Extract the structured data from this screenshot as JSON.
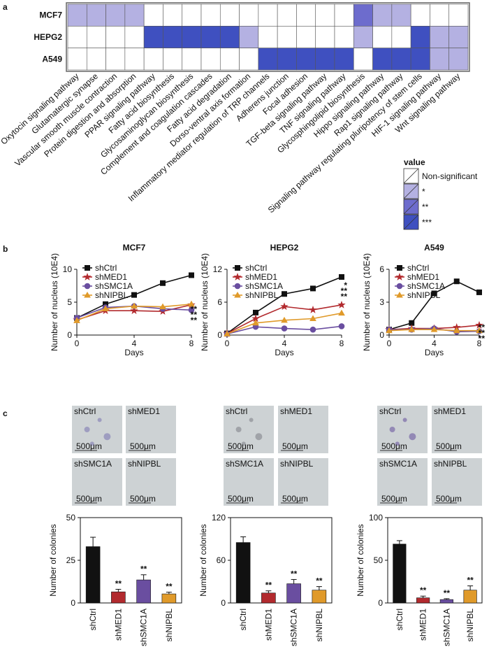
{
  "panel_labels": [
    "a",
    "b",
    "c"
  ],
  "chart_data": [
    {
      "type": "heatmap",
      "rows": [
        "MCF7",
        "HEPG2",
        "A549"
      ],
      "columns": [
        "Oxytocin signaling pathway",
        "Glutamatergic synapse",
        "Vascular smooth muscle contraction",
        "Protein digestion and absorption",
        "PPAR signaling pathway",
        "Fatty acid biosynthesis",
        "Glycosaminoglycan biosynthesis",
        "Complement and coagulation cascades",
        "Fatty acid degradation",
        "Dorso-ventral axis formation",
        "Inflammatory mediator regulation of TRP channels",
        "Adherens junction",
        "Focal adhesion",
        "TGF-beta signaling pathway",
        "TNF signaling pathway",
        "Glycosphingolipid biosynthesis",
        "Hippo signaling pathway",
        "Rap1 signaling pathway",
        "Signaling pathway regulating pluripotency of stem cells",
        "HIF-1 signaling pathway",
        "Wnt signaling pathway"
      ],
      "values": [
        [
          1,
          1,
          1,
          1,
          0,
          0,
          0,
          0,
          0,
          0,
          0,
          0,
          0,
          0,
          0,
          2,
          1,
          1,
          0,
          0,
          0
        ],
        [
          0,
          0,
          0,
          0,
          3,
          3,
          3,
          3,
          3,
          1,
          0,
          0,
          0,
          0,
          0,
          1,
          0,
          0,
          3,
          1,
          1
        ],
        [
          0,
          0,
          0,
          0,
          0,
          0,
          0,
          0,
          0,
          0,
          3,
          3,
          3,
          3,
          3,
          0,
          3,
          3,
          3,
          1,
          1
        ]
      ],
      "legend_title": "value",
      "legend": [
        {
          "label": "Non-significant",
          "color": "#ffffff"
        },
        {
          "label": "*",
          "color": "#b4b1e2"
        },
        {
          "label": "**",
          "color": "#6d6ccd"
        },
        {
          "label": "***",
          "color": "#3f50c0"
        }
      ]
    },
    {
      "type": "line",
      "title": "MCF7",
      "x_label": "Days",
      "y_label": "Number of nucleus (10E4)",
      "x": [
        0,
        2,
        4,
        6,
        8
      ],
      "xlim": [
        0,
        8
      ],
      "xticks": [
        0,
        4,
        8
      ],
      "ylim": [
        0,
        10
      ],
      "yticks": [
        0,
        5,
        10
      ],
      "series": [
        {
          "name": "shCtrl",
          "color": "#111111",
          "marker": "square",
          "values": [
            2.6,
            4.7,
            6.1,
            7.9,
            9.1
          ]
        },
        {
          "name": "shMED1",
          "color": "#b22a2e",
          "marker": "star",
          "values": [
            2.3,
            3.7,
            3.7,
            3.6,
            4.6
          ]
        },
        {
          "name": "shSMC1A",
          "color": "#6a4ea0",
          "marker": "circle",
          "values": [
            2.6,
            4.2,
            4.4,
            4.0,
            3.8
          ]
        },
        {
          "name": "shNIPBL",
          "color": "#e09a2a",
          "marker": "triangle",
          "values": [
            2.2,
            4.0,
            4.4,
            4.3,
            4.7
          ]
        }
      ],
      "annotations": [
        {
          "text": "**",
          "color": "#b22a2e"
        },
        {
          "text": "**",
          "color": "#6a4ea0"
        },
        {
          "text": "**",
          "color": "#e09a2a"
        }
      ]
    },
    {
      "type": "line",
      "title": "HEPG2",
      "x_label": "Days",
      "y_label": "Number of nucleus (10E4)",
      "x": [
        0,
        2,
        4,
        6,
        8
      ],
      "xlim": [
        0,
        8
      ],
      "xticks": [
        0,
        4,
        8
      ],
      "ylim": [
        0,
        12
      ],
      "yticks": [
        0,
        6,
        12
      ],
      "series": [
        {
          "name": "shCtrl",
          "color": "#111111",
          "marker": "square",
          "values": [
            0.3,
            4.1,
            7.5,
            8.5,
            10.6
          ]
        },
        {
          "name": "shMED1",
          "color": "#b22a2e",
          "marker": "star",
          "values": [
            0.3,
            3.0,
            5.2,
            4.6,
            5.5
          ]
        },
        {
          "name": "shSMC1A",
          "color": "#6a4ea0",
          "marker": "circle",
          "values": [
            0.2,
            1.5,
            1.2,
            1.0,
            1.6
          ]
        },
        {
          "name": "shNIPBL",
          "color": "#e09a2a",
          "marker": "triangle",
          "values": [
            0.2,
            2.2,
            2.7,
            3.0,
            4.0
          ]
        }
      ],
      "annotations": [
        {
          "text": "*",
          "color": "#b22a2e"
        },
        {
          "text": "**",
          "color": "#6a4ea0"
        },
        {
          "text": "**",
          "color": "#e09a2a"
        }
      ]
    },
    {
      "type": "line",
      "title": "A549",
      "x_label": "Days",
      "y_label": "Number of nucleus (10E4)",
      "x": [
        0,
        2,
        4,
        6,
        8
      ],
      "xlim": [
        0,
        8
      ],
      "xticks": [
        0,
        4,
        8
      ],
      "ylim": [
        0,
        6
      ],
      "yticks": [
        0,
        3,
        6
      ],
      "series": [
        {
          "name": "shCtrl",
          "color": "#111111",
          "marker": "square",
          "values": [
            0.5,
            1.1,
            3.8,
            4.9,
            3.9
          ]
        },
        {
          "name": "shMED1",
          "color": "#b22a2e",
          "marker": "star",
          "values": [
            0.5,
            0.6,
            0.6,
            0.7,
            0.9
          ]
        },
        {
          "name": "shSMC1A",
          "color": "#6a4ea0",
          "marker": "circle",
          "values": [
            0.5,
            0.5,
            0.6,
            0.3,
            0.35
          ]
        },
        {
          "name": "shNIPBL",
          "color": "#e09a2a",
          "marker": "triangle",
          "values": [
            0.4,
            0.5,
            0.5,
            0.4,
            0.4
          ]
        }
      ],
      "annotations": [
        {
          "text": "**",
          "color": "#b22a2e"
        },
        {
          "text": "**",
          "color": "#6a4ea0"
        },
        {
          "text": "**",
          "color": "#e09a2a"
        }
      ]
    },
    {
      "type": "bar",
      "y_label": "Number of colonies",
      "categories": [
        "shCtrl",
        "shMED1",
        "shSMC1A",
        "shNIPBL"
      ],
      "values": [
        33,
        6.5,
        13.5,
        5.3
      ],
      "errors": [
        5.5,
        1.5,
        3,
        1
      ],
      "colors": [
        "#111111",
        "#b22a2e",
        "#6a4ea0",
        "#e09a2a"
      ],
      "value_annotations": [
        null,
        "**",
        "**",
        "**"
      ],
      "ylim": [
        0,
        50
      ],
      "yticks": [
        0,
        25,
        50
      ]
    },
    {
      "type": "bar",
      "y_label": "Number of colonies",
      "categories": [
        "shCtrl",
        "shMED1",
        "shSMC1A",
        "shNIPBL"
      ],
      "values": [
        85,
        14,
        27,
        18
      ],
      "errors": [
        8,
        3,
        6,
        5
      ],
      "colors": [
        "#111111",
        "#b22a2e",
        "#6a4ea0",
        "#e09a2a"
      ],
      "value_annotations": [
        null,
        "**",
        "**",
        "**"
      ],
      "ylim": [
        0,
        120
      ],
      "yticks": [
        0,
        60,
        120
      ]
    },
    {
      "type": "bar",
      "y_label": "Number of colonies",
      "categories": [
        "shCtrl",
        "shMED1",
        "shSMC1A",
        "shNIPBL"
      ],
      "values": [
        69,
        6,
        4,
        15
      ],
      "errors": [
        4,
        2,
        1,
        5
      ],
      "colors": [
        "#111111",
        "#b22a2e",
        "#6a4ea0",
        "#e09a2a"
      ],
      "value_annotations": [
        null,
        "**",
        "**",
        "**"
      ],
      "ylim": [
        0,
        100
      ],
      "yticks": [
        0,
        50,
        100
      ]
    }
  ],
  "micrographs": [
    {
      "panels": [
        {
          "label": "shCtrl",
          "scale": "500μm"
        },
        {
          "label": "shMED1",
          "scale": "500μm"
        },
        {
          "label": "shSMC1A",
          "scale": "500μm"
        },
        {
          "label": "shNIPBL",
          "scale": "500μm"
        }
      ]
    },
    {
      "panels": [
        {
          "label": "shCtrl",
          "scale": "500μm"
        },
        {
          "label": "shMED1",
          "scale": "500μm"
        },
        {
          "label": "shSMC1A",
          "scale": "500μm"
        },
        {
          "label": "shNIPBL",
          "scale": "500μm"
        }
      ]
    },
    {
      "panels": [
        {
          "label": "shCtrl",
          "scale": "500μm"
        },
        {
          "label": "shMED1",
          "scale": "500μm"
        },
        {
          "label": "shSMC1A",
          "scale": "500μm"
        },
        {
          "label": "shNIPBL",
          "scale": "500μm"
        }
      ]
    }
  ]
}
